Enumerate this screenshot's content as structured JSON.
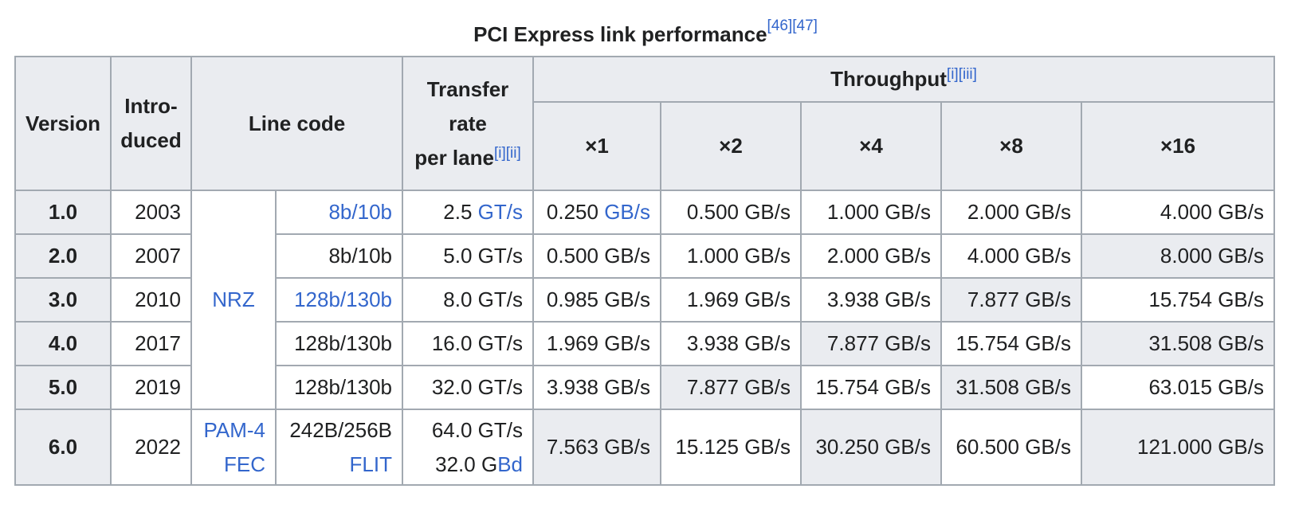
{
  "caption": {
    "title": "PCI Express link performance",
    "refs": "[46][47]"
  },
  "headers": {
    "version": "Version",
    "introduced_1": "Intro-",
    "introduced_2": "duced",
    "line_code": "Line code",
    "transfer_1": "Transfer",
    "transfer_2": "rate",
    "transfer_3": "per lane",
    "transfer_notes": "[i][ii]",
    "throughput": "Throughput",
    "throughput_notes": "[i][iii]",
    "lanes": [
      "×1",
      "×2",
      "×4",
      "×8",
      "×16"
    ]
  },
  "rows": [
    {
      "version": "1.0",
      "year": "2003",
      "code": "8b/10b",
      "rate_num": "2.5",
      "rate_unit": "GT/s",
      "x1_num": "0.250",
      "x1_unit": "GB/s",
      "x2": "0.500 GB/s",
      "x4": "1.000 GB/s",
      "x8": "2.000 GB/s",
      "x16": "4.000 GB/s"
    },
    {
      "version": "2.0",
      "year": "2007",
      "code": "8b/10b",
      "rate": "5.0 GT/s",
      "x1": "0.500 GB/s",
      "x2": "1.000 GB/s",
      "x4": "2.000 GB/s",
      "x8": "4.000 GB/s",
      "x16": "8.000 GB/s"
    },
    {
      "version": "3.0",
      "year": "2010",
      "code": "128b/130b",
      "rate": "8.0 GT/s",
      "x1": "0.985 GB/s",
      "x2": "1.969 GB/s",
      "x4": "3.938 GB/s",
      "x8": "7.877 GB/s",
      "x16": "15.754 GB/s"
    },
    {
      "version": "4.0",
      "year": "2017",
      "code": "128b/130b",
      "rate": "16.0 GT/s",
      "x1": "1.969 GB/s",
      "x2": "3.938 GB/s",
      "x4": "7.877 GB/s",
      "x8": "15.754 GB/s",
      "x16": "31.508 GB/s"
    },
    {
      "version": "5.0",
      "year": "2019",
      "code": "128b/130b",
      "rate": "32.0 GT/s",
      "x1": "3.938 GB/s",
      "x2": "7.877 GB/s",
      "x4": "15.754 GB/s",
      "x8": "31.508 GB/s",
      "x16": "63.015 GB/s"
    },
    {
      "version": "6.0",
      "year": "2022",
      "code_1": "242B/256B",
      "code_2": "FLIT",
      "rate_1": "64.0 GT/s",
      "rate_2_num": "32.0 G",
      "rate_2_unit": "Bd",
      "x1": "7.563 GB/s",
      "x2": "15.125 GB/s",
      "x4": "30.250 GB/s",
      "x8": "60.500 GB/s",
      "x16": "121.000 GB/s"
    }
  ],
  "modulation": {
    "nrz": "NRZ",
    "pam4_1": "PAM-4",
    "pam4_2": "FEC"
  },
  "colors": {
    "header_bg": "#eaecf0",
    "border": "#a2a9b1",
    "link": "#3366cc",
    "text": "#202122"
  }
}
